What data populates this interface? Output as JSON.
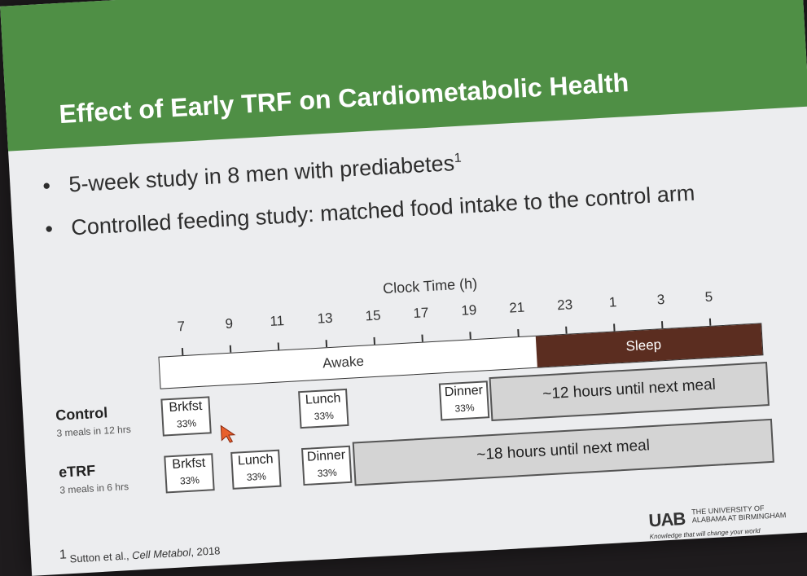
{
  "slide": {
    "title": "Effect of Early TRF on Cardiometabolic Health",
    "bullets": [
      {
        "text": "5-week study in 8 men with prediabetes",
        "sup": "1"
      },
      {
        "text": "Controlled feeding study: matched food intake to the control arm",
        "sup": ""
      }
    ],
    "bullet_symbol": "•"
  },
  "timeline": {
    "axis_title": "Clock Time (h)",
    "ticks": [
      "7",
      "9",
      "11",
      "13",
      "15",
      "17",
      "19",
      "21",
      "23",
      "1",
      "3",
      "5"
    ],
    "awake_label": "Awake",
    "sleep_label": "Sleep"
  },
  "rows": {
    "control": {
      "name": "Control",
      "sub": "3 meals in 12 hrs",
      "meals": [
        {
          "label": "Brkfst",
          "pct": "33%"
        },
        {
          "label": "Lunch",
          "pct": "33%"
        },
        {
          "label": "Dinner",
          "pct": "33%"
        }
      ],
      "fast": "~12 hours until next meal"
    },
    "etrf": {
      "name": "eTRF",
      "sub": "3 meals in 6 hrs",
      "meals": [
        {
          "label": "Brkfst",
          "pct": "33%"
        },
        {
          "label": "Lunch",
          "pct": "33%"
        },
        {
          "label": "Dinner",
          "pct": "33%"
        }
      ],
      "fast": "~18 hours until next meal"
    }
  },
  "footer": {
    "ref_sup": "1",
    "ref_authors": "Sutton et al., ",
    "ref_journal": "Cell Metabol",
    "ref_year": ", 2018",
    "logo_mark": "UAB",
    "logo_line1": "THE UNIVERSITY OF",
    "logo_line2": "ALABAMA AT BIRMINGHAM",
    "logo_tagline": "Knowledge that will change your world"
  },
  "colors": {
    "header_green": "#4f8f45",
    "sleep_brown": "#5b2d20",
    "fast_gray": "#d4d4d4",
    "cursor_orange": "#e8602c"
  }
}
